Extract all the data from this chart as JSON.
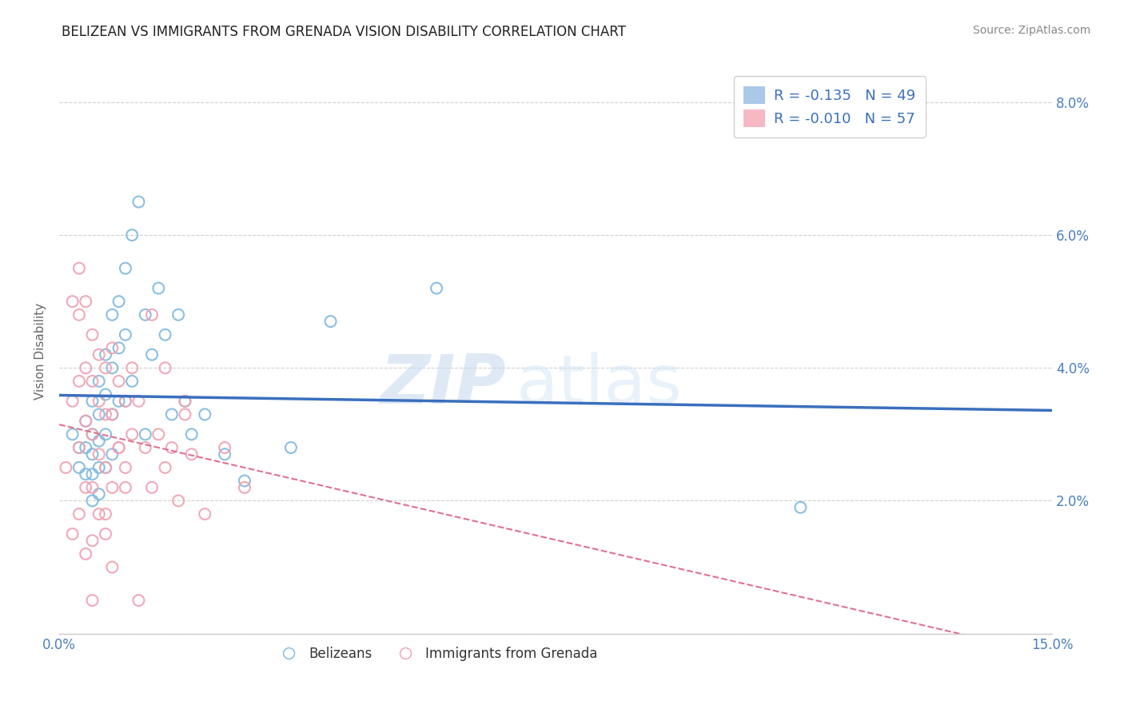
{
  "title": "BELIZEAN VS IMMIGRANTS FROM GRENADA VISION DISABILITY CORRELATION CHART",
  "source": "Source: ZipAtlas.com",
  "ylabel": "Vision Disability",
  "xlim": [
    0.0,
    0.15
  ],
  "ylim": [
    0.0,
    0.085
  ],
  "xticks": [
    0.0,
    0.03,
    0.06,
    0.09,
    0.12,
    0.15
  ],
  "yticks": [
    0.0,
    0.02,
    0.04,
    0.06,
    0.08
  ],
  "R_blue": -0.135,
  "N_blue": 49,
  "R_pink": -0.01,
  "N_pink": 57,
  "blue_color": "#7db8e0",
  "pink_color": "#f0a0b0",
  "blue_line_color": "#3a6fbf",
  "pink_line_color": "#e07090",
  "watermark_zip": "ZIP",
  "watermark_atlas": "atlas",
  "legend_label_blue": "Belizeans",
  "legend_label_pink": "Immigrants from Grenada",
  "blue_scatter_x": [
    0.002,
    0.003,
    0.003,
    0.004,
    0.004,
    0.004,
    0.005,
    0.005,
    0.005,
    0.005,
    0.005,
    0.006,
    0.006,
    0.006,
    0.006,
    0.006,
    0.007,
    0.007,
    0.007,
    0.007,
    0.008,
    0.008,
    0.008,
    0.008,
    0.009,
    0.009,
    0.009,
    0.01,
    0.01,
    0.01,
    0.011,
    0.011,
    0.012,
    0.013,
    0.013,
    0.014,
    0.015,
    0.016,
    0.017,
    0.018,
    0.019,
    0.02,
    0.022,
    0.025,
    0.028,
    0.035,
    0.041,
    0.057,
    0.112
  ],
  "blue_scatter_y": [
    0.03,
    0.028,
    0.025,
    0.032,
    0.028,
    0.024,
    0.035,
    0.03,
    0.027,
    0.024,
    0.02,
    0.038,
    0.033,
    0.029,
    0.025,
    0.021,
    0.042,
    0.036,
    0.03,
    0.025,
    0.048,
    0.04,
    0.033,
    0.027,
    0.05,
    0.043,
    0.035,
    0.055,
    0.045,
    0.035,
    0.06,
    0.038,
    0.065,
    0.048,
    0.03,
    0.042,
    0.052,
    0.045,
    0.033,
    0.048,
    0.035,
    0.03,
    0.033,
    0.027,
    0.023,
    0.028,
    0.047,
    0.052,
    0.019
  ],
  "pink_scatter_x": [
    0.001,
    0.002,
    0.002,
    0.002,
    0.003,
    0.003,
    0.003,
    0.003,
    0.003,
    0.004,
    0.004,
    0.004,
    0.004,
    0.004,
    0.005,
    0.005,
    0.005,
    0.005,
    0.005,
    0.006,
    0.006,
    0.006,
    0.006,
    0.007,
    0.007,
    0.007,
    0.007,
    0.008,
    0.008,
    0.008,
    0.009,
    0.009,
    0.01,
    0.01,
    0.011,
    0.012,
    0.013,
    0.014,
    0.015,
    0.016,
    0.017,
    0.018,
    0.019,
    0.02,
    0.022,
    0.025,
    0.028,
    0.014,
    0.016,
    0.019,
    0.007,
    0.008,
    0.009,
    0.01,
    0.011,
    0.012,
    0.005
  ],
  "pink_scatter_y": [
    0.025,
    0.05,
    0.035,
    0.015,
    0.055,
    0.048,
    0.038,
    0.028,
    0.018,
    0.05,
    0.04,
    0.032,
    0.022,
    0.012,
    0.045,
    0.038,
    0.03,
    0.022,
    0.014,
    0.042,
    0.035,
    0.027,
    0.018,
    0.04,
    0.033,
    0.025,
    0.018,
    0.043,
    0.033,
    0.022,
    0.038,
    0.028,
    0.035,
    0.025,
    0.04,
    0.035,
    0.028,
    0.022,
    0.03,
    0.025,
    0.028,
    0.02,
    0.033,
    0.027,
    0.018,
    0.028,
    0.022,
    0.048,
    0.04,
    0.035,
    0.015,
    0.01,
    0.028,
    0.022,
    0.03,
    0.005,
    0.005
  ]
}
